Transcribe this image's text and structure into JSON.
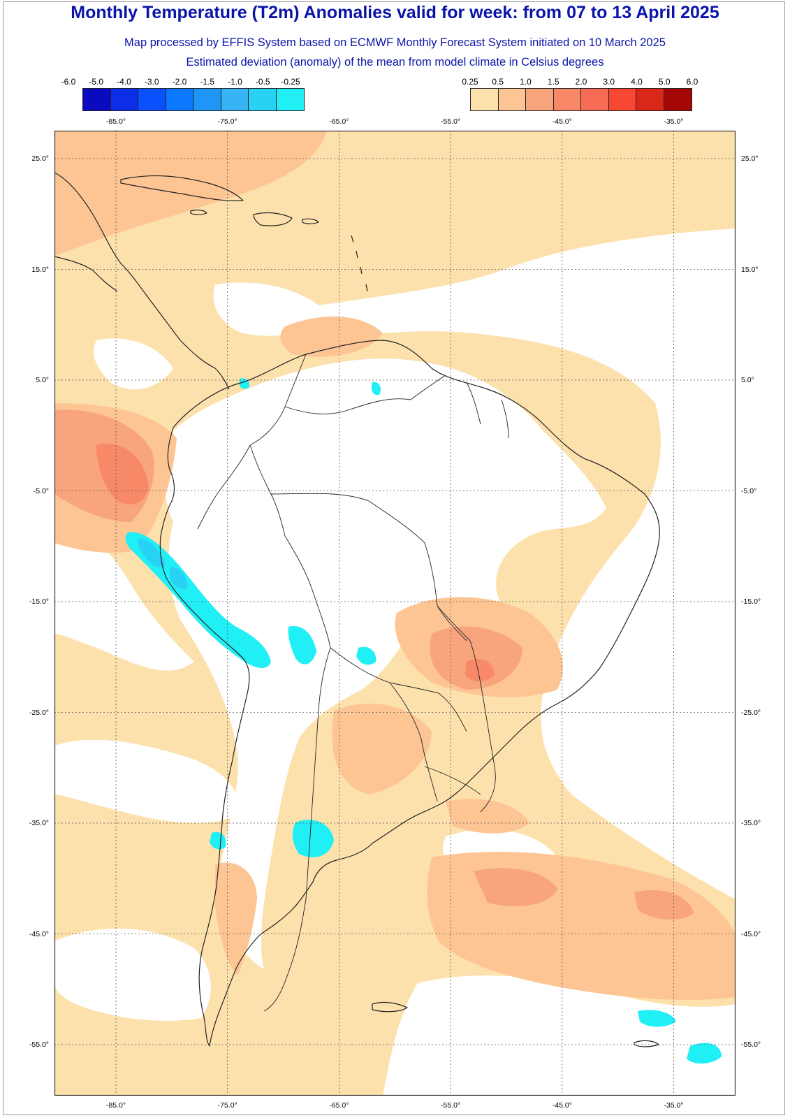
{
  "header": {
    "title": "Monthly Temperature (T2m) Anomalies valid for week: from 07 to 13 April 2025",
    "subtitle": "Map processed by EFFIS System based on ECMWF Monthly Forecast System initiated on 10 March 2025",
    "description": "Estimated deviation (anomaly) of the mean from model climate in Celsius degrees"
  },
  "legend": {
    "cold": {
      "labels": [
        "-6.0",
        "-5.0",
        "-4.0",
        "-3.0",
        "-2.0",
        "-1.5",
        "-1.0",
        "-0.5",
        "-0.25"
      ],
      "colors": [
        "#0a0abe",
        "#0b2ee6",
        "#0a50ff",
        "#0a78ff",
        "#1e96f5",
        "#36b4f5",
        "#28d2f5",
        "#20f0f5"
      ]
    },
    "warm": {
      "labels": [
        "0.25",
        "0.5",
        "1.0",
        "1.5",
        "2.0",
        "3.0",
        "4.0",
        "5.0",
        "6.0"
      ],
      "colors": [
        "#fde1ad",
        "#fdc593",
        "#f8a47d",
        "#f78868",
        "#f86b55",
        "#f84833",
        "#d92818",
        "#a50707"
      ]
    }
  },
  "axes": {
    "lon_ticks": [
      "-85.0°",
      "-75.0°",
      "-65.0°",
      "-55.0°",
      "-45.0°",
      "-35.0°"
    ],
    "lat_ticks": [
      "25.0°",
      "15.0°",
      "5.0°",
      "-5.0°",
      "-15.0°",
      "-25.0°",
      "-35.0°",
      "-45.0°",
      "-55.0°"
    ]
  },
  "map": {
    "no_anomaly_color": "#ffffff",
    "coast_color": "#222222",
    "grid": "dotted"
  }
}
